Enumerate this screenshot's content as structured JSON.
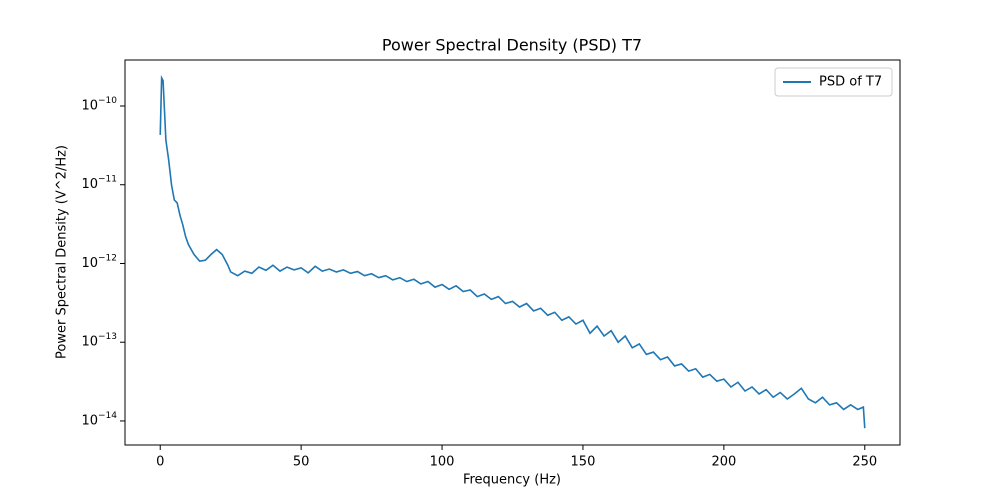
{
  "chart_data": {
    "type": "line",
    "title": "Power Spectral Density (PSD) T7",
    "xlabel": "Frequency (Hz)",
    "ylabel": "Power Spectral Density (V^2/Hz)",
    "yscale": "log",
    "legend": "upper right",
    "xlim": [
      -12.5,
      262.5
    ],
    "xticks": [
      0,
      50,
      100,
      150,
      200,
      250
    ],
    "ylim": [
      4.95e-15,
      3.84e-10
    ],
    "yticks": [
      {
        "value": 1e-14,
        "label": "10−14"
      },
      {
        "value": 1e-13,
        "label": "10−13"
      },
      {
        "value": 1e-12,
        "label": "10−12"
      },
      {
        "value": 1e-11,
        "label": "10−11"
      },
      {
        "value": 1e-10,
        "label": "10−10"
      }
    ],
    "x": [
      0,
      0.5,
      1,
      1.5,
      2,
      3,
      4,
      5,
      6,
      7,
      8,
      9,
      10,
      12,
      14,
      16,
      18,
      20,
      22,
      24,
      25,
      27.5,
      30,
      32.5,
      35,
      37.5,
      40,
      42.5,
      45,
      47.5,
      50,
      52.5,
      55,
      57.5,
      60,
      62.5,
      65,
      67.5,
      70,
      72.5,
      75,
      77.5,
      80,
      82.5,
      85,
      87.5,
      90,
      92.5,
      95,
      97.5,
      100,
      102.5,
      105,
      107.5,
      110,
      112.5,
      115,
      117.5,
      120,
      122.5,
      125,
      127.5,
      130,
      132.5,
      135,
      137.5,
      140,
      142.5,
      145,
      147.5,
      150,
      152.5,
      155,
      157.5,
      160,
      162.5,
      165,
      167.5,
      170,
      172.5,
      175,
      177.5,
      180,
      182.5,
      185,
      187.5,
      190,
      192.5,
      195,
      197.5,
      200,
      202.5,
      205,
      207.5,
      210,
      212.5,
      215,
      217.5,
      220,
      222.5,
      225,
      227.5,
      230,
      232.5,
      235,
      237.5,
      240,
      242.5,
      245,
      247.5,
      249.5,
      250
    ],
    "series": [
      {
        "name": "PSD of T7",
        "color": "#1f77b4",
        "values": [
          4.3e-11,
          2.27e-10,
          2.1e-10,
          9e-11,
          3.7e-11,
          2.06e-11,
          1e-11,
          6.4e-12,
          5.9e-12,
          4.1e-12,
          3.1e-12,
          2.2e-12,
          1.74e-12,
          1.3e-12,
          1.07e-12,
          1.1e-12,
          1.3e-12,
          1.5e-12,
          1.3e-12,
          9.5e-13,
          7.8e-13,
          7e-13,
          8e-13,
          7.5e-13,
          9e-13,
          8.2e-13,
          9.5e-13,
          8e-13,
          9e-13,
          8.3e-13,
          8.8e-13,
          7.6e-13,
          9.2e-13,
          8e-13,
          8.5e-13,
          7.8e-13,
          8.3e-13,
          7.5e-13,
          7.9e-13,
          7e-13,
          7.4e-13,
          6.6e-13,
          7e-13,
          6.2e-13,
          6.6e-13,
          5.9e-13,
          6.3e-13,
          5.5e-13,
          5.9e-13,
          5e-13,
          5.4e-13,
          4.7e-13,
          5.2e-13,
          4.4e-13,
          4.6e-13,
          3.8e-13,
          4.1e-13,
          3.5e-13,
          3.8e-13,
          3.1e-13,
          3.3e-13,
          2.8e-13,
          3.1e-13,
          2.5e-13,
          2.7e-13,
          2.2e-13,
          2.4e-13,
          1.9e-13,
          2.1e-13,
          1.7e-13,
          1.9e-13,
          1.3e-13,
          1.6e-13,
          1.2e-13,
          1.4e-13,
          1e-13,
          1.2e-13,
          8.5e-14,
          9.5e-14,
          7e-14,
          7.5e-14,
          6e-14,
          6.5e-14,
          5e-14,
          5.3e-14,
          4.3e-14,
          4.6e-14,
          3.6e-14,
          3.9e-14,
          3.2e-14,
          3.4e-14,
          2.7e-14,
          3.1e-14,
          2.4e-14,
          2.7e-14,
          2.2e-14,
          2.5e-14,
          2e-14,
          2.3e-14,
          1.9e-14,
          2.2e-14,
          2.6e-14,
          1.9e-14,
          1.7e-14,
          2e-14,
          1.6e-14,
          1.7e-14,
          1.4e-14,
          1.6e-14,
          1.4e-14,
          1.5e-14,
          8.1e-15
        ]
      }
    ]
  }
}
